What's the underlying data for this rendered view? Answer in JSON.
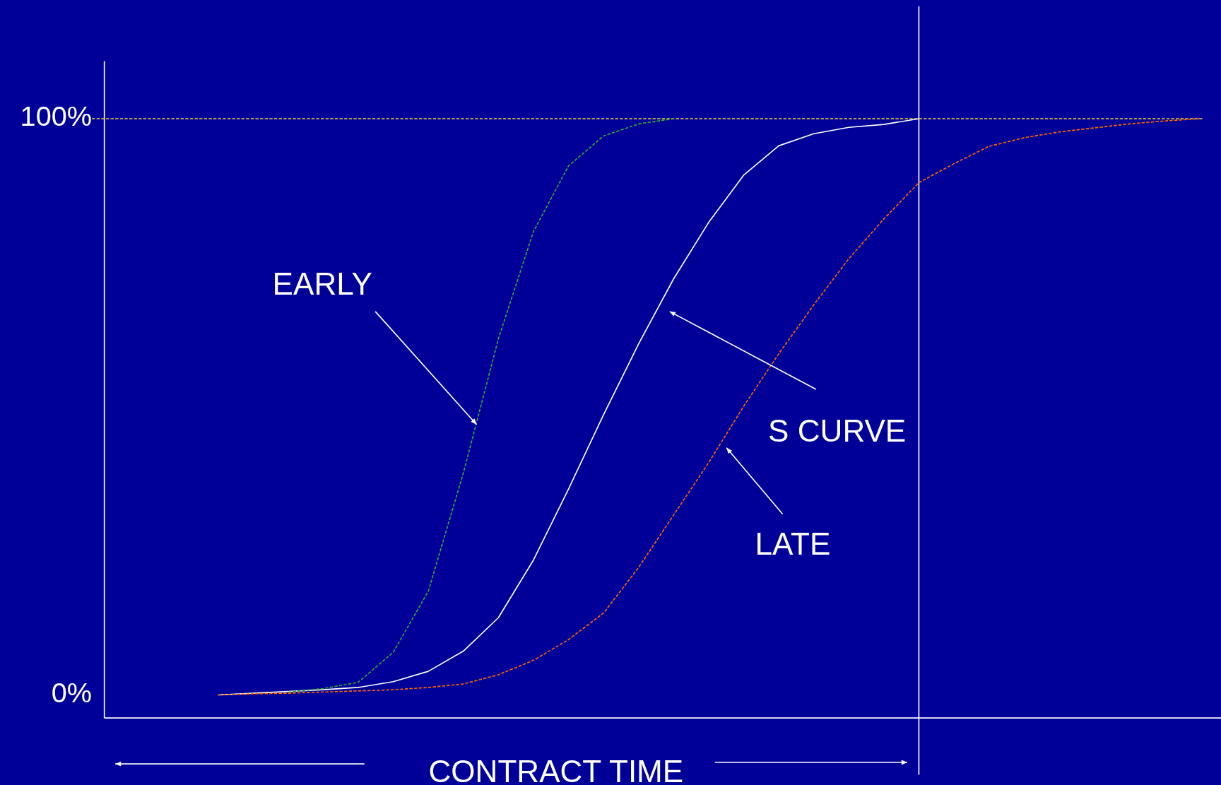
{
  "chart_data": {
    "type": "line",
    "xlabel": "CONTRACT  TIME",
    "categories": [
      null,
      null,
      null,
      null,
      null,
      null,
      null,
      null,
      null,
      null,
      null,
      null,
      null,
      null,
      null,
      null,
      null,
      null,
      null,
      null,
      null,
      null,
      null,
      null,
      null,
      null,
      null,
      null,
      null
    ],
    "ylim": [
      -4,
      110
    ],
    "yticks": [
      {
        "value": 0,
        "label": "0%"
      },
      {
        "value": 100,
        "label": "100%"
      }
    ],
    "tick_labels": "y",
    "series": [
      {
        "color": "#33aa33",
        "line_style": "dashed",
        "values": [
          null,
          null,
          0.5,
          1.1,
          2.2,
          7.4,
          18.0,
          38.5,
          61.8,
          80.4,
          91.8,
          97.0,
          99.1,
          100,
          null,
          null,
          null,
          null,
          null,
          null,
          null,
          null,
          null,
          null,
          null,
          null,
          null,
          null,
          null
        ]
      },
      {
        "color": "#ffffff",
        "line_style": "solid",
        "values": [
          0,
          0.3,
          0.6,
          0.9,
          1.3,
          2.3,
          4.1,
          7.6,
          13.4,
          23.4,
          35.7,
          48.6,
          60.9,
          72.2,
          82.0,
          90.2,
          95.3,
          97.4,
          98.5,
          99.0,
          100,
          null,
          null,
          null,
          null,
          null,
          null,
          null,
          null
        ]
      },
      {
        "color": "#ff6600",
        "line_style": "dashed",
        "values": [
          0,
          0.2,
          0.3,
          0.5,
          0.7,
          0.9,
          1.3,
          1.9,
          3.5,
          6.0,
          9.6,
          14.2,
          22.1,
          31.2,
          40.3,
          50.1,
          59.2,
          67.7,
          75.7,
          82.6,
          88.9,
          92.2,
          95.2,
          96.7,
          97.7,
          98.4,
          99.1,
          99.6,
          100
        ]
      }
    ],
    "ref_lines": [
      {
        "axis": "y",
        "value": 100,
        "color": "#e6c84d",
        "line_style": "dashed"
      }
    ],
    "annotations": [
      "EARLY",
      "S CURVE",
      "LATE"
    ]
  }
}
